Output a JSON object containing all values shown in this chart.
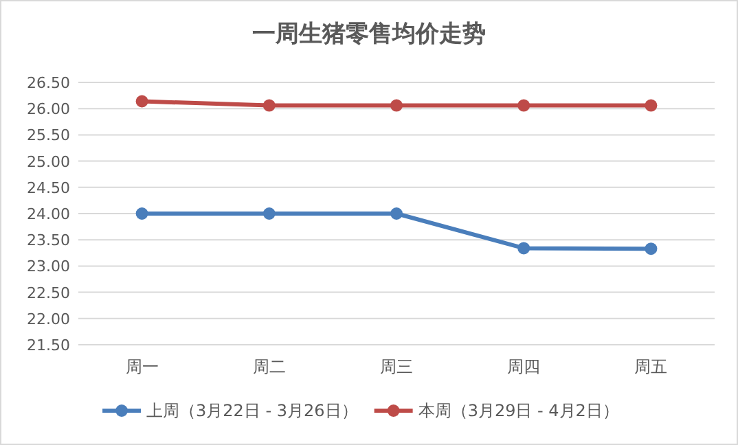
{
  "chart_data": {
    "type": "line",
    "title": "一周生猪零售均价走势",
    "categories": [
      "周一",
      "周二",
      "周三",
      "周四",
      "周五"
    ],
    "series": [
      {
        "name": "上周（3月22日 - 3月26日）",
        "color": "#4a7ebb",
        "values": [
          24.0,
          24.0,
          24.0,
          23.34,
          23.33
        ]
      },
      {
        "name": "本周（3月29日 - 4月2日）",
        "color": "#be4b48",
        "values": [
          26.14,
          26.06,
          26.06,
          26.06,
          26.06
        ]
      }
    ],
    "ylim": [
      21.5,
      26.5
    ],
    "yticks": [
      {
        "value": 21.5,
        "label": "21.50"
      },
      {
        "value": 22,
        "label": "22.00"
      },
      {
        "value": 22.5,
        "label": "22.50"
      },
      {
        "value": 23,
        "label": "23.00"
      },
      {
        "value": 23.5,
        "label": "23.50"
      },
      {
        "value": 24,
        "label": "24.00"
      },
      {
        "value": 24.5,
        "label": "24.50"
      },
      {
        "value": 25,
        "label": "25.00"
      },
      {
        "value": 25.5,
        "label": "25.50"
      },
      {
        "value": 26,
        "label": "26.00"
      },
      {
        "value": 26.5,
        "label": "26.50"
      }
    ],
    "grid": "y",
    "legend": "bottom",
    "marker": "circle",
    "line_style": "solid"
  }
}
